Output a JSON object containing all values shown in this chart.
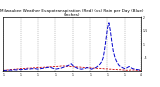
{
  "title": "Milwaukee Weather Evapotranspiration (Red) (vs) Rain per Day (Blue) (Inches)",
  "title_fontsize": 3.0,
  "background_color": "#ffffff",
  "grid_color": "#888888",
  "x_values": [
    0,
    1,
    2,
    3,
    4,
    5,
    6,
    7,
    8,
    9,
    10,
    11,
    12,
    13,
    14,
    15,
    16,
    17,
    18,
    19,
    20,
    21,
    22,
    23,
    24,
    25,
    26,
    27,
    28,
    29,
    30,
    31,
    32,
    33,
    34,
    35,
    36,
    37,
    38,
    39,
    40,
    41,
    42,
    43,
    44,
    45,
    46,
    47,
    48,
    49,
    50,
    51,
    52,
    53,
    54,
    55,
    56,
    57,
    58,
    59,
    60,
    61,
    62,
    63,
    64,
    65,
    66,
    67,
    68,
    69,
    70,
    71,
    72,
    73,
    74,
    75,
    76,
    77,
    78,
    79,
    80,
    81,
    82,
    83,
    84,
    85,
    86,
    87,
    88,
    89,
    90,
    91,
    92,
    93,
    94,
    95
  ],
  "red_values": [
    0.04,
    0.04,
    0.05,
    0.05,
    0.06,
    0.06,
    0.07,
    0.07,
    0.08,
    0.08,
    0.09,
    0.09,
    0.1,
    0.1,
    0.1,
    0.11,
    0.11,
    0.12,
    0.12,
    0.12,
    0.13,
    0.13,
    0.13,
    0.14,
    0.14,
    0.14,
    0.15,
    0.15,
    0.15,
    0.16,
    0.16,
    0.16,
    0.17,
    0.17,
    0.17,
    0.18,
    0.18,
    0.18,
    0.19,
    0.19,
    0.2,
    0.2,
    0.2,
    0.19,
    0.19,
    0.19,
    0.18,
    0.18,
    0.17,
    0.17,
    0.17,
    0.16,
    0.16,
    0.16,
    0.15,
    0.15,
    0.14,
    0.14,
    0.14,
    0.13,
    0.13,
    0.13,
    0.12,
    0.12,
    0.12,
    0.11,
    0.11,
    0.11,
    0.1,
    0.1,
    0.09,
    0.09,
    0.09,
    0.08,
    0.08,
    0.08,
    0.07,
    0.07,
    0.07,
    0.06,
    0.06,
    0.06,
    0.05,
    0.05,
    0.05,
    0.04,
    0.04,
    0.04,
    0.05,
    0.05,
    0.05,
    0.04,
    0.04,
    0.04,
    0.04,
    0.03
  ],
  "blue_values": [
    0.02,
    0.03,
    0.04,
    0.03,
    0.04,
    0.05,
    0.04,
    0.05,
    0.06,
    0.05,
    0.06,
    0.07,
    0.06,
    0.07,
    0.08,
    0.07,
    0.08,
    0.09,
    0.08,
    0.09,
    0.1,
    0.09,
    0.1,
    0.09,
    0.08,
    0.09,
    0.1,
    0.11,
    0.12,
    0.13,
    0.14,
    0.15,
    0.16,
    0.14,
    0.12,
    0.1,
    0.08,
    0.09,
    0.1,
    0.11,
    0.12,
    0.14,
    0.16,
    0.18,
    0.2,
    0.22,
    0.25,
    0.28,
    0.22,
    0.18,
    0.15,
    0.12,
    0.1,
    0.09,
    0.08,
    0.09,
    0.1,
    0.12,
    0.14,
    0.12,
    0.1,
    0.08,
    0.1,
    0.12,
    0.14,
    0.18,
    0.22,
    0.28,
    0.36,
    0.5,
    0.8,
    1.2,
    1.6,
    1.8,
    1.5,
    1.1,
    0.75,
    0.55,
    0.4,
    0.3,
    0.22,
    0.18,
    0.15,
    0.12,
    0.1,
    0.12,
    0.15,
    0.18,
    0.14,
    0.11,
    0.09,
    0.08,
    0.07,
    0.06,
    0.05,
    0.04
  ],
  "ylim": [
    0,
    2.0
  ],
  "yticks": [
    0.5,
    1.0,
    1.5,
    2.0
  ],
  "ytick_labels": [
    ".5",
    "1",
    "1.5",
    "2"
  ],
  "xtick_positions": [
    0,
    12,
    24,
    36,
    48,
    60,
    72,
    84,
    95
  ],
  "xtick_labels": [
    "1",
    "1",
    "1",
    "1",
    "1",
    "1",
    "1",
    "1",
    "4"
  ],
  "vgrid_positions": [
    0,
    12,
    24,
    36,
    48,
    60,
    72,
    84,
    95
  ],
  "red_color": "#cc0000",
  "blue_color": "#0000cc",
  "red_lw": 0.6,
  "blue_lw": 0.7,
  "spine_lw": 0.5
}
